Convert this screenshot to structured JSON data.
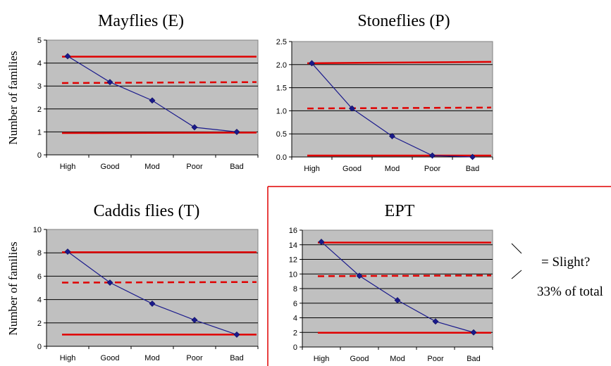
{
  "page": {
    "note_slight": "= Slight?",
    "note_total": "33% of total",
    "accent_color": "#e00000",
    "series_color": "#1a1a8c",
    "plot_bg": "#c0c0c0"
  },
  "chart_data": [
    {
      "type": "line",
      "title": "Mayflies (E)",
      "ylabel": "Number of families",
      "categories": [
        "High",
        "Good",
        "Mod",
        "Poor",
        "Bad"
      ],
      "values": [
        4.3,
        3.17,
        2.37,
        1.2,
        1.0
      ],
      "ylim": [
        0,
        5
      ],
      "yticks": [
        0,
        1,
        2,
        3,
        4,
        5
      ],
      "ytick_labels": [
        "0",
        "1",
        "2",
        "3",
        "4",
        "5"
      ],
      "hlines": [
        {
          "y": 4.28,
          "style": "solid"
        },
        {
          "y": 3.13,
          "y_end": 3.17,
          "style": "dashed"
        },
        {
          "y": 0.95,
          "y_end": 0.97,
          "style": "solid"
        }
      ],
      "grid": true
    },
    {
      "type": "line",
      "title": "Stoneflies (P)",
      "ylabel": "",
      "categories": [
        "High",
        "Good",
        "Mod",
        "Poor",
        "Bad"
      ],
      "values": [
        2.03,
        1.05,
        0.45,
        0.03,
        0.0
      ],
      "ylim": [
        0,
        2.5
      ],
      "yticks": [
        0,
        0.5,
        1.0,
        1.5,
        2.0,
        2.5
      ],
      "ytick_labels": [
        "0.0",
        "0.5",
        "1.0",
        "1.5",
        "2.0",
        "2.5"
      ],
      "hlines": [
        {
          "y": 2.03,
          "y_end": 2.06,
          "style": "solid"
        },
        {
          "y": 1.05,
          "y_end": 1.07,
          "style": "dashed"
        },
        {
          "y": 0.03,
          "style": "solid"
        }
      ],
      "grid": true
    },
    {
      "type": "line",
      "title": "Caddis flies (T)",
      "ylabel": "Number of families",
      "categories": [
        "High",
        "Good",
        "Mod",
        "Poor",
        "Bad"
      ],
      "values": [
        8.1,
        5.45,
        3.65,
        2.25,
        1.0
      ],
      "ylim": [
        0,
        10
      ],
      "yticks": [
        0,
        2,
        4,
        6,
        8,
        10
      ],
      "ytick_labels": [
        "0",
        "2",
        "4",
        "6",
        "8",
        "10"
      ],
      "hlines": [
        {
          "y": 8.05,
          "style": "solid"
        },
        {
          "y": 5.45,
          "y_end": 5.5,
          "style": "dashed"
        },
        {
          "y": 1.0,
          "style": "solid"
        }
      ],
      "grid": true
    },
    {
      "type": "line",
      "title": "EPT",
      "ylabel": "",
      "categories": [
        "High",
        "Good",
        "Mod",
        "Poor",
        "Bad"
      ],
      "values": [
        14.4,
        9.75,
        6.4,
        3.5,
        2.0
      ],
      "ylim": [
        0,
        16
      ],
      "yticks": [
        0,
        2,
        4,
        6,
        8,
        10,
        12,
        14,
        16
      ],
      "ytick_labels": [
        "0",
        "2",
        "4",
        "6",
        "8",
        "10",
        "12",
        "14",
        "16"
      ],
      "hlines": [
        {
          "y": 14.3,
          "style": "solid"
        },
        {
          "y": 9.7,
          "y_end": 9.8,
          "style": "dashed"
        },
        {
          "y": 1.95,
          "style": "solid"
        }
      ],
      "grid": true
    }
  ]
}
